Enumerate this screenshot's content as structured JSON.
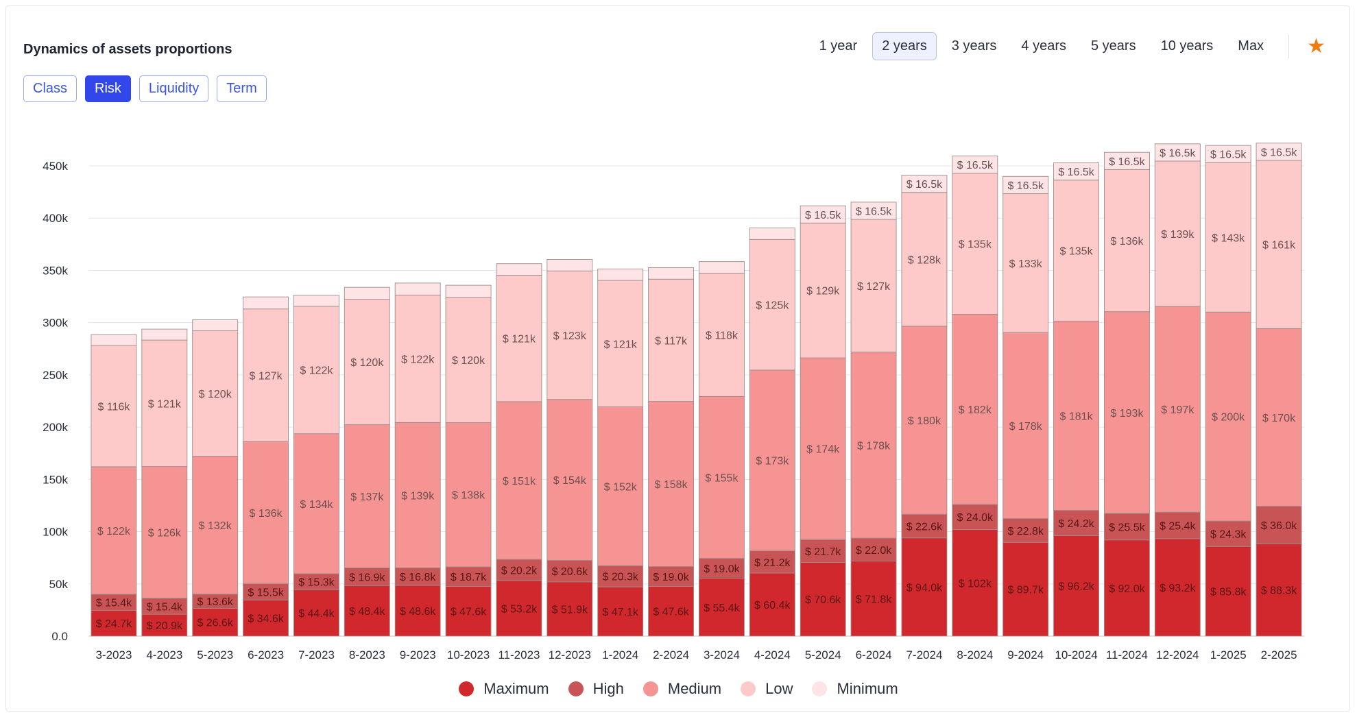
{
  "header": {
    "title": "Dynamics of assets proportions",
    "ranges": [
      "1 year",
      "2 years",
      "3 years",
      "4 years",
      "5 years",
      "10 years",
      "Max"
    ],
    "active_range": "2 years"
  },
  "tabs": {
    "items": [
      "Class",
      "Risk",
      "Liquidity",
      "Term"
    ],
    "active": "Risk"
  },
  "icons": {
    "favorite": "star-icon"
  },
  "colors": {
    "accent": "#3147ec",
    "star": "#f07b0e",
    "Maximum": "#d1282e",
    "High": "#c95455",
    "Medium": "#f69493",
    "Low": "#fdc9c9",
    "Minimum": "#fee4e4"
  },
  "chart_data": {
    "type": "bar",
    "stacked": true,
    "categories": [
      "3-2023",
      "4-2023",
      "5-2023",
      "6-2023",
      "7-2023",
      "8-2023",
      "9-2023",
      "10-2023",
      "11-2023",
      "12-2023",
      "1-2024",
      "2-2024",
      "3-2024",
      "4-2024",
      "5-2024",
      "6-2024",
      "7-2024",
      "8-2024",
      "9-2024",
      "10-2024",
      "11-2024",
      "12-2024",
      "1-2025",
      "2-2025"
    ],
    "ylim": [
      0,
      450000
    ],
    "yticks": [
      "0.0",
      "50k",
      "100k",
      "150k",
      "200k",
      "250k",
      "300k",
      "350k",
      "400k",
      "450k"
    ],
    "grid": true,
    "legend_position": "bottom",
    "series": [
      {
        "name": "Maximum",
        "values": [
          24700,
          20900,
          26600,
          34600,
          44400,
          48400,
          48600,
          47600,
          53200,
          51900,
          47100,
          47600,
          55400,
          60400,
          70600,
          71800,
          94000,
          102000,
          89700,
          96200,
          92000,
          93200,
          85800,
          88300
        ],
        "labels": [
          "$ 24.7k",
          "$ 20.9k",
          "$ 26.6k",
          "$ 34.6k",
          "$ 44.4k",
          "$ 48.4k",
          "$ 48.6k",
          "$ 47.6k",
          "$ 53.2k",
          "$ 51.9k",
          "$ 47.1k",
          "$ 47.6k",
          "$ 55.4k",
          "$ 60.4k",
          "$ 70.6k",
          "$ 71.8k",
          "$ 94.0k",
          "$ 102k",
          "$ 89.7k",
          "$ 96.2k",
          "$ 92.0k",
          "$ 93.2k",
          "$ 85.8k",
          "$ 88.3k"
        ]
      },
      {
        "name": "High",
        "values": [
          15400,
          15400,
          13600,
          15500,
          15300,
          16900,
          16800,
          18700,
          20200,
          20600,
          20300,
          19000,
          19000,
          21200,
          21700,
          22000,
          22600,
          24000,
          22800,
          24200,
          25500,
          25400,
          24300,
          36000
        ],
        "labels": [
          "$ 15.4k",
          "$ 15.4k",
          "$ 13.6k",
          "$ 15.5k",
          "$ 15.3k",
          "$ 16.9k",
          "$ 16.8k",
          "$ 18.7k",
          "$ 20.2k",
          "$ 20.6k",
          "$ 20.3k",
          "$ 19.0k",
          "$ 19.0k",
          "$ 21.2k",
          "$ 21.7k",
          "$ 22.0k",
          "$ 22.6k",
          "$ 24.0k",
          "$ 22.8k",
          "$ 24.2k",
          "$ 25.5k",
          "$ 25.4k",
          "$ 24.3k",
          "$ 36.0k"
        ]
      },
      {
        "name": "Medium",
        "values": [
          122000,
          126000,
          132000,
          136000,
          134000,
          137000,
          139000,
          138000,
          151000,
          154000,
          152000,
          158000,
          155000,
          173000,
          174000,
          178000,
          180000,
          182000,
          178000,
          181000,
          193000,
          197000,
          200000,
          170000
        ],
        "labels": [
          "$ 122k",
          "$ 126k",
          "$ 132k",
          "$ 136k",
          "$ 134k",
          "$ 137k",
          "$ 139k",
          "$ 138k",
          "$ 151k",
          "$ 154k",
          "$ 152k",
          "$ 158k",
          "$ 155k",
          "$ 173k",
          "$ 174k",
          "$ 178k",
          "$ 180k",
          "$ 182k",
          "$ 178k",
          "$ 181k",
          "$ 193k",
          "$ 197k",
          "$ 200k",
          "$ 170k"
        ]
      },
      {
        "name": "Low",
        "values": [
          116000,
          121000,
          120000,
          127000,
          122000,
          120000,
          122000,
          120000,
          121000,
          123000,
          121000,
          117000,
          118000,
          125000,
          129000,
          127000,
          128000,
          135000,
          133000,
          135000,
          136000,
          139000,
          143000,
          161000
        ],
        "labels": [
          "$ 116k",
          "$ 121k",
          "$ 120k",
          "$ 127k",
          "$ 122k",
          "$ 120k",
          "$ 122k",
          "$ 120k",
          "$ 121k",
          "$ 123k",
          "$ 121k",
          "$ 117k",
          "$ 118k",
          "$ 125k",
          "$ 129k",
          "$ 127k",
          "$ 128k",
          "$ 135k",
          "$ 133k",
          "$ 135k",
          "$ 136k",
          "$ 139k",
          "$ 143k",
          "$ 161k"
        ]
      },
      {
        "name": "Minimum",
        "values": [
          10500,
          10500,
          10500,
          11500,
          10500,
          11500,
          11500,
          11500,
          11000,
          11000,
          11000,
          11000,
          11000,
          11000,
          16500,
          16500,
          16500,
          16500,
          16500,
          16500,
          16500,
          16500,
          16500,
          16500
        ],
        "labels": [
          "",
          "",
          "",
          "",
          "",
          "",
          "",
          "",
          "",
          "",
          "",
          "",
          "",
          "",
          "$ 16.5k",
          "$ 16.5k",
          "$ 16.5k",
          "$ 16.5k",
          "$ 16.5k",
          "$ 16.5k",
          "$ 16.5k",
          "$ 16.5k",
          "$ 16.5k",
          "$ 16.5k"
        ]
      }
    ]
  }
}
